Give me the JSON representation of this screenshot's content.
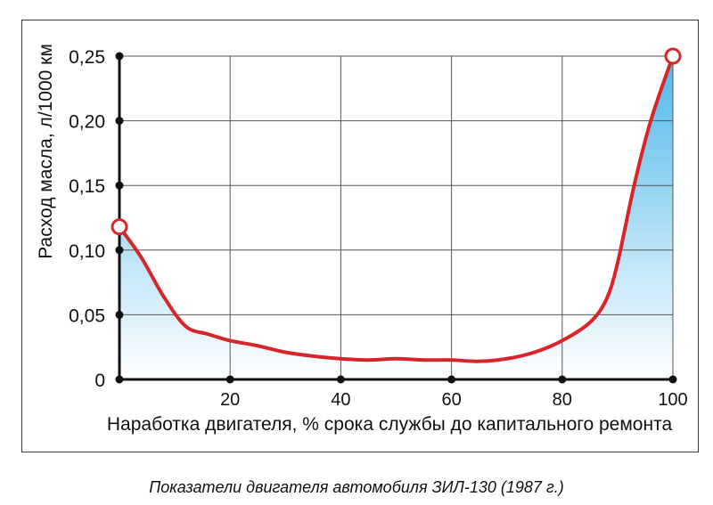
{
  "caption": "Показатели двигателя автомобиля ЗИЛ-130 (1987 г.)",
  "colors": {
    "curve": "#d7262b",
    "fill_top": "#4fb8ea",
    "fill_bottom": "#ffffff",
    "grid": "#555555",
    "axis": "#111111"
  },
  "chart_data": {
    "type": "area",
    "title": "",
    "xlabel": "Наработка двигателя, % срока службы до капитального ремонта",
    "ylabel": "Расход масла, л/1000 км",
    "xlim": [
      0,
      100
    ],
    "ylim": [
      0,
      0.25
    ],
    "x_ticks": [
      {
        "value": 20,
        "label": "20"
      },
      {
        "value": 40,
        "label": "40"
      },
      {
        "value": 60,
        "label": "60"
      },
      {
        "value": 80,
        "label": "80"
      },
      {
        "value": 100,
        "label": "100"
      }
    ],
    "y_ticks": [
      {
        "value": 0,
        "label": "0"
      },
      {
        "value": 0.05,
        "label": "0,05"
      },
      {
        "value": 0.1,
        "label": "0,10"
      },
      {
        "value": 0.15,
        "label": "0,15"
      },
      {
        "value": 0.2,
        "label": "0,20"
      },
      {
        "value": 0.25,
        "label": "0,25"
      }
    ],
    "grid": true,
    "series": [
      {
        "x": [
          0,
          4,
          8,
          12,
          16,
          20,
          25,
          30,
          35,
          40,
          45,
          50,
          55,
          60,
          65,
          70,
          75,
          80,
          85,
          88,
          90,
          93,
          96,
          100
        ],
        "values": [
          0.118,
          0.094,
          0.064,
          0.041,
          0.035,
          0.03,
          0.026,
          0.021,
          0.018,
          0.016,
          0.015,
          0.016,
          0.015,
          0.015,
          0.014,
          0.016,
          0.021,
          0.03,
          0.044,
          0.062,
          0.09,
          0.15,
          0.2,
          0.25
        ]
      }
    ],
    "markers": [
      {
        "x": 0,
        "y": 0.118
      },
      {
        "x": 100,
        "y": 0.25
      }
    ]
  }
}
